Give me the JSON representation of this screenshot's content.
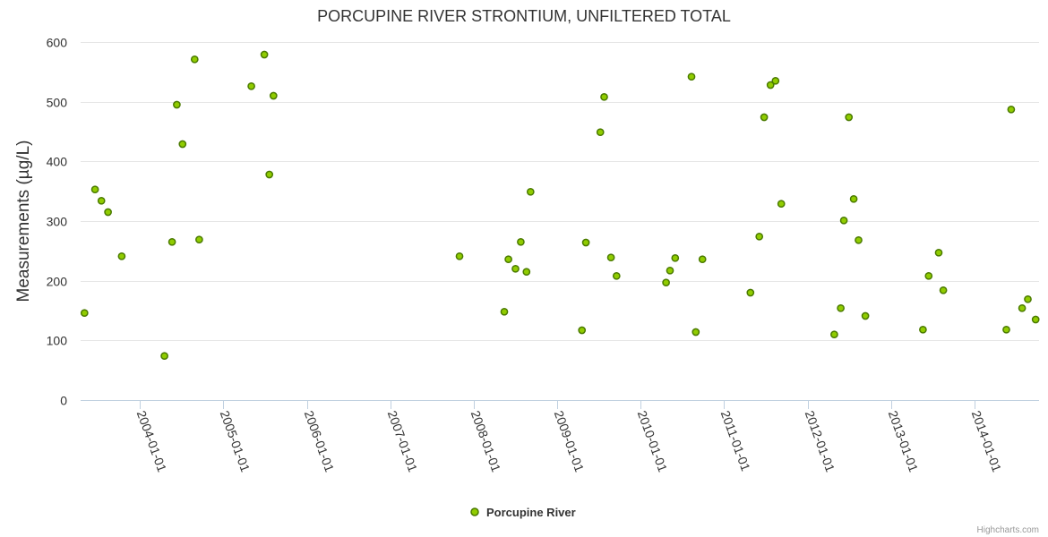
{
  "chart_data": {
    "type": "scatter",
    "title": "PORCUPINE RIVER STRONTIUM, UNFILTERED TOTAL",
    "xlabel": "",
    "ylabel": "Measurements (µg/L)",
    "ylim": [
      0,
      600
    ],
    "yticks": [
      0,
      100,
      200,
      300,
      400,
      500,
      600
    ],
    "xlim": [
      "2003-04-17",
      "2014-10-10"
    ],
    "xticks": [
      "2004-01-01",
      "2005-01-01",
      "2006-01-01",
      "2007-01-01",
      "2008-01-01",
      "2009-01-01",
      "2010-01-01",
      "2011-01-01",
      "2012-01-01",
      "2013-01-01",
      "2014-01-01"
    ],
    "grid": true,
    "legend_position": "bottom-center",
    "series": [
      {
        "name": "Porcupine River",
        "color": "#90cc00",
        "border_color": "#4a7a00",
        "points": [
          [
            "2003-05-04",
            146
          ],
          [
            "2003-06-19",
            353
          ],
          [
            "2003-07-17",
            334
          ],
          [
            "2003-08-15",
            315
          ],
          [
            "2003-10-14",
            241
          ],
          [
            "2004-04-18",
            74
          ],
          [
            "2004-05-21",
            265
          ],
          [
            "2004-06-11",
            495
          ],
          [
            "2004-07-06",
            429
          ],
          [
            "2004-08-28",
            571
          ],
          [
            "2004-09-17",
            269
          ],
          [
            "2005-05-03",
            526
          ],
          [
            "2005-06-29",
            579
          ],
          [
            "2005-07-21",
            378
          ],
          [
            "2005-08-08",
            510
          ],
          [
            "2007-10-31",
            241
          ],
          [
            "2008-05-14",
            148
          ],
          [
            "2008-06-01",
            236
          ],
          [
            "2008-07-02",
            220
          ],
          [
            "2008-07-25",
            265
          ],
          [
            "2008-08-19",
            215
          ],
          [
            "2008-09-06",
            349
          ],
          [
            "2009-04-19",
            117
          ],
          [
            "2009-05-06",
            264
          ],
          [
            "2009-07-08",
            449
          ],
          [
            "2009-07-25",
            508
          ],
          [
            "2009-08-24",
            239
          ],
          [
            "2009-09-17",
            208
          ],
          [
            "2010-04-22",
            197
          ],
          [
            "2010-05-09",
            217
          ],
          [
            "2010-06-01",
            238
          ],
          [
            "2010-08-11",
            542
          ],
          [
            "2010-08-30",
            114
          ],
          [
            "2010-09-28",
            236
          ],
          [
            "2011-04-26",
            180
          ],
          [
            "2011-06-04",
            274
          ],
          [
            "2011-06-25",
            474
          ],
          [
            "2011-07-23",
            528
          ],
          [
            "2011-08-14",
            535
          ],
          [
            "2011-09-08",
            329
          ],
          [
            "2012-04-27",
            110
          ],
          [
            "2012-05-25",
            154
          ],
          [
            "2012-06-08",
            301
          ],
          [
            "2012-06-30",
            474
          ],
          [
            "2012-07-21",
            337
          ],
          [
            "2012-08-11",
            268
          ],
          [
            "2012-09-10",
            141
          ],
          [
            "2013-05-20",
            118
          ],
          [
            "2013-06-14",
            208
          ],
          [
            "2013-07-28",
            247
          ],
          [
            "2013-08-17",
            184
          ],
          [
            "2014-05-20",
            118
          ],
          [
            "2014-06-10",
            487
          ],
          [
            "2014-07-28",
            154
          ],
          [
            "2014-08-22",
            169
          ],
          [
            "2014-09-25",
            135
          ]
        ]
      }
    ]
  },
  "credits": "Highcharts.com"
}
